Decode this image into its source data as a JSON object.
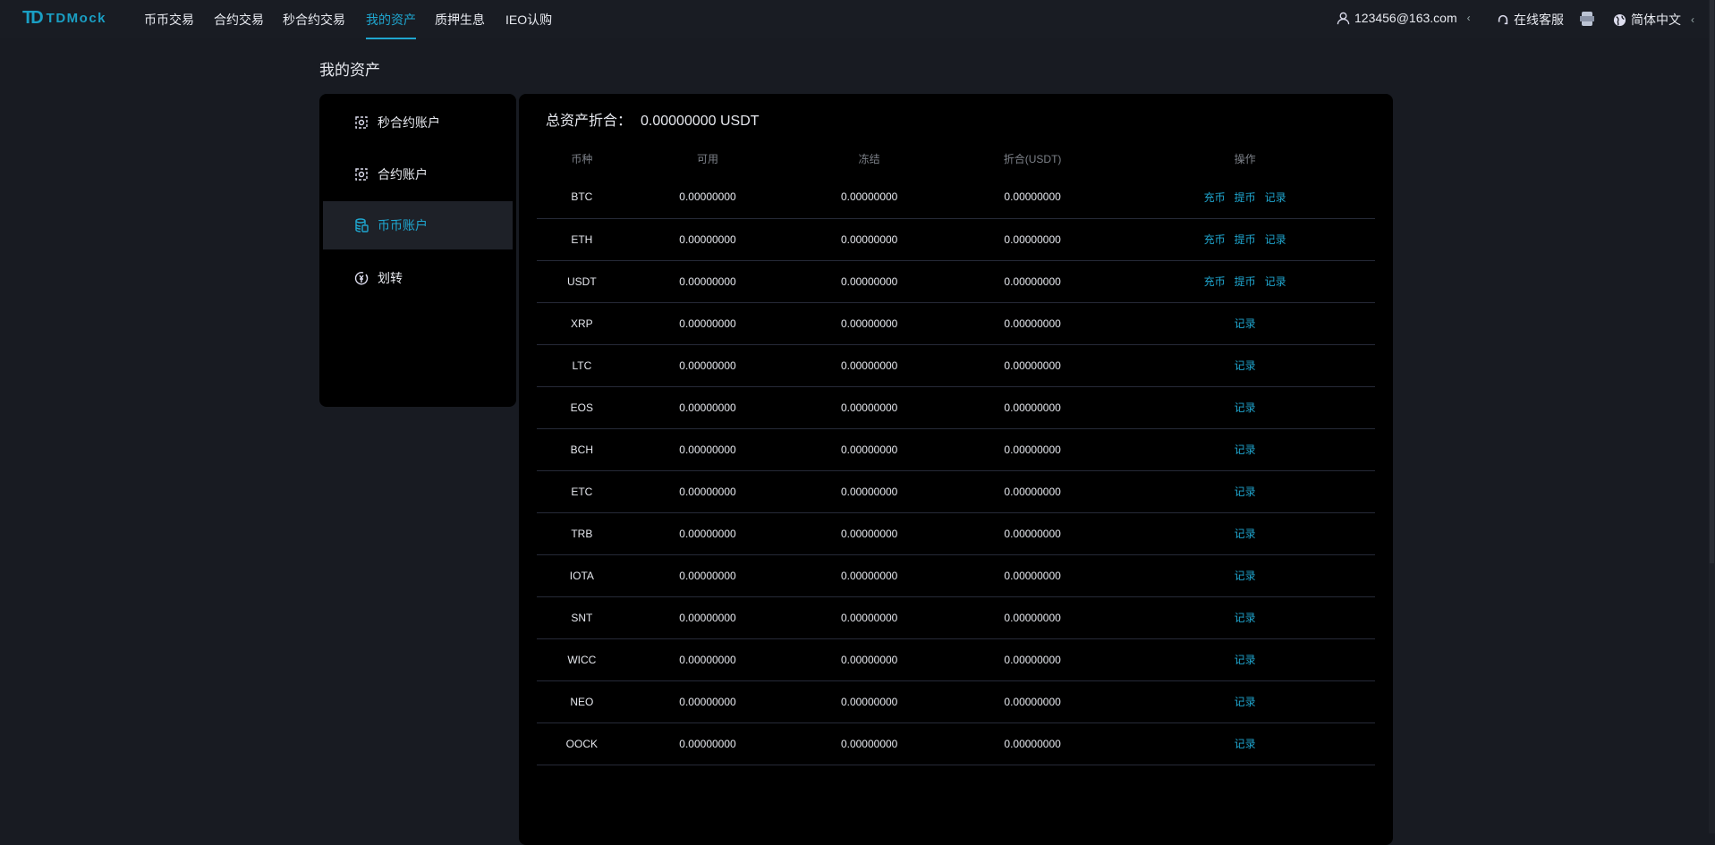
{
  "brand": {
    "logo_text": "TDMock",
    "logo_mark": "TD"
  },
  "nav": {
    "items": [
      {
        "label": "币币交易"
      },
      {
        "label": "合约交易"
      },
      {
        "label": "秒合约交易"
      },
      {
        "label": "我的资产",
        "active": true
      },
      {
        "label": "质押生息"
      },
      {
        "label": "IEO认购"
      }
    ],
    "user": "123456@163.com",
    "support": "在线客服",
    "language": "简体中文"
  },
  "page": {
    "title": "我的资产"
  },
  "sidebar": {
    "items": [
      {
        "label": "秒合约账户",
        "icon": "contract-icon"
      },
      {
        "label": "合约账户",
        "icon": "contract-icon"
      },
      {
        "label": "币币账户",
        "icon": "database-icon",
        "active": true
      },
      {
        "label": "划转",
        "icon": "transfer-icon"
      }
    ]
  },
  "summary": {
    "label": "总资产折合：",
    "value": "0.00000000 USDT"
  },
  "table": {
    "headers": [
      "币种",
      "可用",
      "冻结",
      "折合(USDT)",
      "操作"
    ],
    "actions": {
      "deposit": "充币",
      "withdraw": "提币",
      "record": "记录"
    },
    "rows": [
      {
        "coin": "BTC",
        "available": "0.00000000",
        "frozen": "0.00000000",
        "usdt": "0.00000000",
        "full": true
      },
      {
        "coin": "ETH",
        "available": "0.00000000",
        "frozen": "0.00000000",
        "usdt": "0.00000000",
        "full": true
      },
      {
        "coin": "USDT",
        "available": "0.00000000",
        "frozen": "0.00000000",
        "usdt": "0.00000000",
        "full": true
      },
      {
        "coin": "XRP",
        "available": "0.00000000",
        "frozen": "0.00000000",
        "usdt": "0.00000000",
        "full": false
      },
      {
        "coin": "LTC",
        "available": "0.00000000",
        "frozen": "0.00000000",
        "usdt": "0.00000000",
        "full": false
      },
      {
        "coin": "EOS",
        "available": "0.00000000",
        "frozen": "0.00000000",
        "usdt": "0.00000000",
        "full": false
      },
      {
        "coin": "BCH",
        "available": "0.00000000",
        "frozen": "0.00000000",
        "usdt": "0.00000000",
        "full": false
      },
      {
        "coin": "ETC",
        "available": "0.00000000",
        "frozen": "0.00000000",
        "usdt": "0.00000000",
        "full": false
      },
      {
        "coin": "TRB",
        "available": "0.00000000",
        "frozen": "0.00000000",
        "usdt": "0.00000000",
        "full": false
      },
      {
        "coin": "IOTA",
        "available": "0.00000000",
        "frozen": "0.00000000",
        "usdt": "0.00000000",
        "full": false
      },
      {
        "coin": "SNT",
        "available": "0.00000000",
        "frozen": "0.00000000",
        "usdt": "0.00000000",
        "full": false
      },
      {
        "coin": "WICC",
        "available": "0.00000000",
        "frozen": "0.00000000",
        "usdt": "0.00000000",
        "full": false
      },
      {
        "coin": "NEO",
        "available": "0.00000000",
        "frozen": "0.00000000",
        "usdt": "0.00000000",
        "full": false
      },
      {
        "coin": "OOCK",
        "available": "0.00000000",
        "frozen": "0.00000000",
        "usdt": "0.00000000",
        "full": false
      }
    ]
  },
  "colors": {
    "accent": "#1fa6cf",
    "background": "#181b22",
    "panel": "#000000"
  }
}
